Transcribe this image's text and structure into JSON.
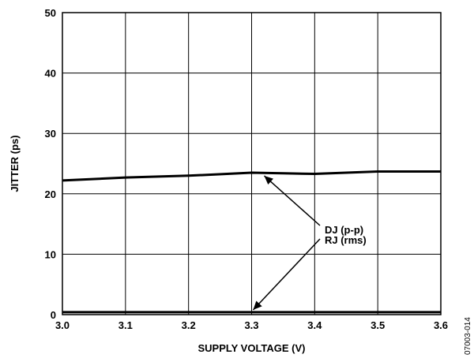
{
  "chart_data": {
    "type": "line",
    "title": "",
    "xlabel": "SUPPLY VOLTAGE (V)",
    "ylabel": "JITTER (ps)",
    "xlim": [
      3.0,
      3.6
    ],
    "ylim": [
      0,
      50
    ],
    "x_ticks": [
      "3.0",
      "3.1",
      "3.2",
      "3.3",
      "3.4",
      "3.5",
      "3.6"
    ],
    "y_ticks": [
      "0",
      "10",
      "20",
      "30",
      "40",
      "50"
    ],
    "grid": true,
    "series": [
      {
        "name": "DJ (p-p)",
        "x": [
          3.0,
          3.1,
          3.2,
          3.3,
          3.35,
          3.4,
          3.5,
          3.6
        ],
        "y": [
          22.2,
          22.7,
          23.0,
          23.5,
          23.4,
          23.3,
          23.7,
          23.7
        ]
      },
      {
        "name": "RJ (rms)",
        "x": [
          3.0,
          3.1,
          3.2,
          3.3,
          3.4,
          3.5,
          3.6
        ],
        "y": [
          0.4,
          0.4,
          0.4,
          0.4,
          0.4,
          0.4,
          0.4
        ]
      }
    ],
    "annotations": [
      "DJ (p-p)",
      "RJ (rms)"
    ],
    "figure_id": "07003-014"
  }
}
